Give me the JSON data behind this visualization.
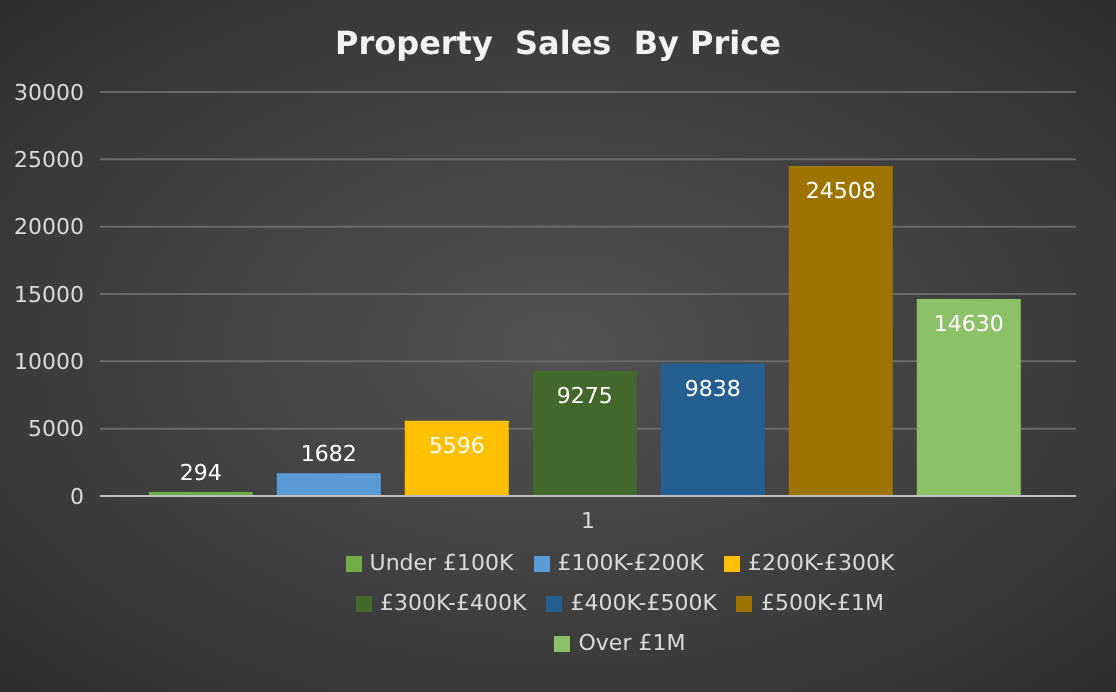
{
  "chart_data": {
    "type": "bar",
    "title": "Property  Sales  By Price",
    "categories": [
      "1"
    ],
    "series": [
      {
        "name": "Under £100K",
        "color": "#70ad47",
        "values": [
          294
        ]
      },
      {
        "name": "£100K-£200K",
        "color": "#5b9bd5",
        "values": [
          1682
        ]
      },
      {
        "name": "£200K-£300K",
        "color": "#ffc000",
        "values": [
          5596
        ]
      },
      {
        "name": "£300K-£400K",
        "color": "#43682b",
        "values": [
          9275
        ]
      },
      {
        "name": "£400K-£500K",
        "color": "#255e91",
        "values": [
          9838
        ]
      },
      {
        "name": "£500K-£1M",
        "color": "#9e7400",
        "values": [
          24508
        ]
      },
      {
        "name": "Over £1M",
        "color": "#8cc168",
        "values": [
          14630
        ]
      }
    ],
    "ylim": [
      0,
      30000
    ],
    "yticks": [
      0,
      5000,
      10000,
      15000,
      20000,
      25000,
      30000
    ],
    "grid": "y",
    "legend": "bottom",
    "data_labels": true
  }
}
